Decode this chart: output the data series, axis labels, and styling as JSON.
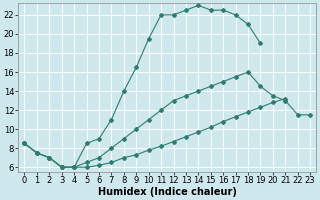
{
  "xlabel": "Humidex (Indice chaleur)",
  "background_color": "#cfe8ed",
  "grid_color": "#ffffff",
  "line_color": "#2e7d6e",
  "xlim": [
    -0.5,
    23.5
  ],
  "ylim": [
    5.5,
    23.2
  ],
  "xticks": [
    0,
    1,
    2,
    3,
    4,
    5,
    6,
    7,
    8,
    9,
    10,
    11,
    12,
    13,
    14,
    15,
    16,
    17,
    18,
    19,
    20,
    21,
    22,
    23
  ],
  "yticks": [
    6,
    8,
    10,
    12,
    14,
    16,
    18,
    20,
    22
  ],
  "series1_x": [
    0,
    1,
    2,
    3,
    4,
    5,
    6,
    7,
    8,
    9,
    10,
    11,
    12,
    13,
    14,
    15,
    16,
    17,
    18,
    19
  ],
  "series1_y": [
    8.5,
    7.5,
    7.0,
    6.0,
    6.0,
    8.5,
    9.0,
    11.0,
    14.0,
    16.5,
    19.5,
    22.0,
    22.0,
    22.5,
    23.0,
    22.5,
    22.5,
    22.0,
    21.0,
    19.0
  ],
  "series2_x": [
    0,
    1,
    2,
    3,
    4,
    5,
    6,
    7,
    8,
    9,
    10,
    11,
    12,
    13,
    14,
    15,
    16,
    17,
    18,
    19,
    20,
    21
  ],
  "series2_y": [
    8.5,
    7.5,
    7.0,
    6.0,
    6.0,
    6.0,
    6.2,
    6.5,
    7.0,
    7.3,
    7.8,
    8.2,
    8.7,
    9.2,
    9.7,
    10.2,
    10.8,
    11.3,
    11.8,
    12.3,
    12.8,
    13.2
  ],
  "series3_x": [
    0,
    1,
    2,
    3,
    4,
    5,
    6,
    7,
    8,
    9,
    10,
    11,
    12,
    13,
    14,
    15,
    16,
    17,
    18,
    19,
    20,
    21,
    22,
    23
  ],
  "series3_y": [
    8.5,
    7.5,
    7.0,
    6.0,
    6.0,
    6.5,
    7.0,
    8.0,
    9.0,
    10.0,
    11.0,
    12.0,
    13.0,
    13.5,
    14.0,
    14.5,
    15.0,
    15.5,
    16.0,
    14.5,
    13.5,
    13.0,
    11.5,
    11.5
  ],
  "xlabel_fontsize": 7,
  "tick_fontsize": 6
}
